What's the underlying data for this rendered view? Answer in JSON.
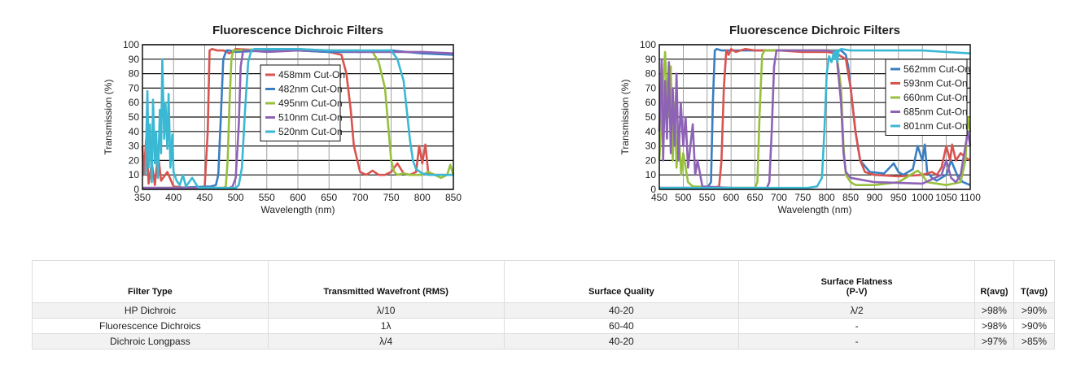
{
  "chart_data": [
    {
      "type": "line",
      "title": "Fluorescence Dichroic Filters",
      "xlabel": "Wavelength (nm)",
      "ylabel": "Transmission (%)",
      "xlim": [
        350,
        850
      ],
      "ylim": [
        0,
        100
      ],
      "xticks": [
        350,
        400,
        450,
        500,
        550,
        600,
        650,
        700,
        750,
        800,
        850
      ],
      "yticks": [
        0,
        10,
        20,
        30,
        40,
        50,
        60,
        70,
        80,
        90,
        100
      ],
      "grid": true,
      "legend_position": "upper-center",
      "series": [
        {
          "name": "458mm Cut-On",
          "color": "#d9534f",
          "x": [
            350,
            352,
            356,
            360,
            365,
            370,
            375,
            380,
            390,
            400,
            420,
            450,
            455,
            458,
            462,
            470,
            480,
            490,
            500,
            550,
            600,
            650,
            670,
            678,
            685,
            690,
            700,
            710,
            720,
            730,
            740,
            750,
            760,
            770,
            780,
            790,
            795,
            800,
            805,
            810,
            815,
            820,
            830,
            840,
            850
          ],
          "y": [
            30,
            10,
            35,
            4,
            18,
            3,
            25,
            6,
            12,
            2,
            1,
            1,
            40,
            96,
            97,
            96,
            96,
            94,
            97,
            96,
            96,
            95,
            93,
            80,
            55,
            30,
            12,
            10,
            13,
            10,
            10,
            12,
            18,
            11,
            10,
            12,
            30,
            18,
            31,
            10,
            11,
            10,
            10,
            10,
            10
          ]
        },
        {
          "name": "482nm Cut-On",
          "color": "#3a7ec2",
          "x": [
            350,
            400,
            460,
            468,
            472,
            476,
            480,
            485,
            490,
            500,
            550,
            600,
            650,
            700,
            750,
            800,
            850
          ],
          "y": [
            1,
            1,
            2,
            3,
            10,
            50,
            90,
            96,
            96,
            95,
            96,
            96,
            95,
            95,
            96,
            94,
            93
          ]
        },
        {
          "name": "495nm Cut-On",
          "color": "#97c03d",
          "x": [
            350,
            400,
            480,
            484,
            487,
            490,
            493,
            496,
            500,
            550,
            600,
            650,
            700,
            720,
            730,
            740,
            745,
            750,
            755,
            760,
            770,
            780,
            790,
            800,
            810,
            820,
            830,
            840,
            845,
            850
          ],
          "y": [
            1,
            1,
            1,
            2,
            20,
            60,
            90,
            96,
            96,
            97,
            97,
            96,
            96,
            95,
            88,
            70,
            45,
            20,
            12,
            10,
            11,
            10,
            10,
            10,
            12,
            10,
            8,
            10,
            17,
            10
          ]
        },
        {
          "name": "510nm Cut-On",
          "color": "#8e63b5",
          "x": [
            350,
            400,
            490,
            495,
            500,
            505,
            508,
            512,
            520,
            550,
            600,
            650,
            700,
            750,
            800,
            850
          ],
          "y": [
            1,
            1,
            1,
            2,
            8,
            45,
            85,
            96,
            96,
            95,
            96,
            96,
            95,
            95,
            95,
            94
          ]
        },
        {
          "name": "520nm Cut-On",
          "color": "#3ab8d4",
          "x": [
            355,
            358,
            360,
            362,
            365,
            367,
            370,
            372,
            375,
            378,
            380,
            382,
            385,
            387,
            390,
            392,
            395,
            398,
            400,
            405,
            410,
            415,
            420,
            430,
            440,
            500,
            505,
            510,
            515,
            520,
            525,
            530,
            560,
            600,
            650,
            700,
            750,
            760,
            770,
            775,
            780,
            785,
            790,
            800,
            810,
            820,
            830,
            840,
            850
          ],
          "y": [
            10,
            68,
            15,
            45,
            5,
            62,
            18,
            40,
            8,
            55,
            25,
            90,
            35,
            60,
            28,
            66,
            15,
            38,
            12,
            6,
            3,
            10,
            2,
            8,
            1,
            1,
            3,
            15,
            55,
            88,
            96,
            97,
            97,
            97,
            96,
            96,
            96,
            90,
            75,
            55,
            35,
            20,
            14,
            11,
            10,
            10,
            10,
            10,
            10
          ]
        }
      ]
    },
    {
      "type": "line",
      "title": "Fluorescence Dichroic Filters",
      "xlabel": "Wavelength (nm)",
      "ylabel": "Transmission (%)",
      "xlim": [
        450,
        1100
      ],
      "ylim": [
        0,
        100
      ],
      "xticks": [
        450,
        500,
        550,
        600,
        650,
        700,
        750,
        800,
        850,
        900,
        950,
        1000,
        1050,
        1100
      ],
      "yticks": [
        0,
        10,
        20,
        30,
        40,
        50,
        60,
        70,
        80,
        90,
        100
      ],
      "grid": true,
      "legend_position": "top-right",
      "series": [
        {
          "name": "562mm Cut-On",
          "color": "#3a7ec2",
          "x": [
            450,
            500,
            550,
            558,
            562,
            566,
            570,
            580,
            600,
            700,
            800,
            830,
            840,
            845,
            850,
            860,
            870,
            890,
            920,
            940,
            950,
            960,
            980,
            990,
            1000,
            1005,
            1010,
            1020,
            1030,
            1050,
            1060,
            1075,
            1085,
            1100
          ],
          "y": [
            1,
            1,
            1,
            5,
            60,
            96,
            97,
            96,
            96,
            96,
            96,
            96,
            93,
            85,
            70,
            40,
            20,
            12,
            11,
            18,
            12,
            10,
            14,
            30,
            20,
            31,
            12,
            8,
            6,
            10,
            20,
            8,
            5,
            3
          ]
        },
        {
          "name": "593nm Cut-On",
          "color": "#d9534f",
          "x": [
            450,
            520,
            560,
            575,
            580,
            585,
            590,
            595,
            600,
            610,
            630,
            650,
            700,
            750,
            800,
            820,
            840,
            850,
            860,
            870,
            880,
            900,
            950,
            1000,
            1020,
            1030,
            1040,
            1050,
            1058,
            1062,
            1070,
            1080,
            1090,
            1100
          ],
          "y": [
            1,
            1,
            1,
            2,
            20,
            70,
            96,
            93,
            97,
            95,
            97,
            96,
            96,
            95,
            95,
            94,
            90,
            70,
            40,
            20,
            12,
            10,
            9,
            10,
            12,
            10,
            15,
            30,
            20,
            31,
            20,
            25,
            22,
            20
          ]
        },
        {
          "name": "660nm Cut-On",
          "color": "#97c03d",
          "x": [
            450,
            462,
            468,
            474,
            478,
            482,
            486,
            490,
            496,
            500,
            510,
            520,
            600,
            650,
            655,
            660,
            665,
            670,
            680,
            700,
            800,
            810,
            820,
            830,
            835,
            840,
            850,
            860,
            900,
            950,
            990,
            1000,
            1010,
            1050,
            1080,
            1090,
            1095,
            1100
          ],
          "y": [
            20,
            95,
            50,
            85,
            20,
            60,
            15,
            40,
            10,
            25,
            5,
            2,
            1,
            1,
            5,
            55,
            93,
            96,
            96,
            96,
            96,
            96,
            95,
            70,
            30,
            10,
            5,
            3,
            3,
            5,
            13,
            10,
            5,
            3,
            5,
            20,
            50,
            40
          ]
        },
        {
          "name": "685nm Cut-On",
          "color": "#8e63b5",
          "x": [
            450,
            455,
            458,
            462,
            466,
            470,
            474,
            478,
            482,
            486,
            490,
            495,
            500,
            505,
            510,
            515,
            520,
            525,
            530,
            540,
            600,
            675,
            680,
            685,
            690,
            695,
            700,
            750,
            800,
            820,
            830,
            835,
            840,
            850,
            900,
            1000,
            1040,
            1050,
            1060,
            1070,
            1080,
            1090,
            1095,
            1100
          ],
          "y": [
            40,
            90,
            20,
            75,
            35,
            88,
            25,
            70,
            30,
            80,
            20,
            60,
            30,
            50,
            15,
            30,
            45,
            10,
            20,
            2,
            1,
            1,
            5,
            40,
            85,
            96,
            96,
            96,
            96,
            95,
            60,
            25,
            12,
            8,
            5,
            4,
            10,
            20,
            8,
            5,
            10,
            30,
            40,
            30
          ]
        },
        {
          "name": "801nm Cut-On",
          "color": "#3ab8d4",
          "x": [
            450,
            700,
            760,
            780,
            790,
            795,
            800,
            805,
            810,
            815,
            818,
            820,
            822,
            825,
            830,
            850,
            900,
            950,
            1000,
            1050,
            1100
          ],
          "y": [
            1,
            1,
            1,
            2,
            8,
            40,
            80,
            92,
            88,
            95,
            90,
            96,
            88,
            96,
            97,
            96,
            96,
            96,
            96,
            95,
            94
          ]
        }
      ]
    }
  ],
  "table": {
    "headers": {
      "filter_type": "Filter Type",
      "wavefront": "Transmitted Wavefront (RMS)",
      "surface_quality": "Surface Quality",
      "flatness_line1": "Surface Flatness",
      "flatness_line2": "(P-V)",
      "r_avg": "R(avg)",
      "t_avg": "T(avg)"
    },
    "rows": [
      {
        "filter_type": "HP Dichroic",
        "wavefront": "λ/10",
        "surface_quality": "40-20",
        "flatness": "λ/2",
        "r_avg": ">98%",
        "t_avg": ">90%"
      },
      {
        "filter_type": "Fluorescence Dichroics",
        "wavefront": "1λ",
        "surface_quality": "60-40",
        "flatness": "-",
        "r_avg": ">98%",
        "t_avg": ">90%"
      },
      {
        "filter_type": "Dichroic Longpass",
        "wavefront": "λ/4",
        "surface_quality": "40-20",
        "flatness": "-",
        "r_avg": ">97%",
        "t_avg": ">85%"
      }
    ]
  }
}
